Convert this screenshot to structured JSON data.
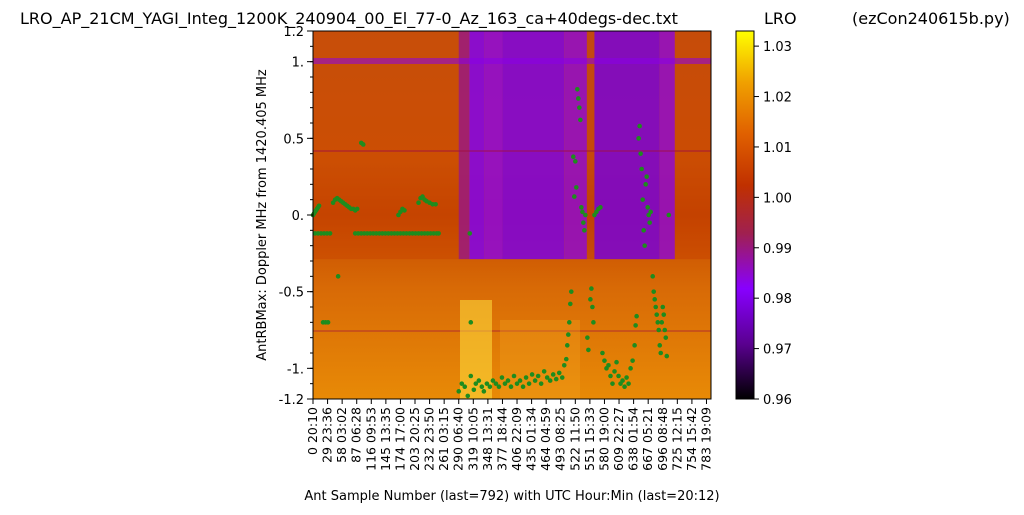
{
  "header": {
    "title": "LRO_AP_21CM_YAGI_Integ_1200K_240904_00_El_77-0_Az_163_ca+40degs-dec.txt",
    "station": "LRO",
    "script": "(ezCon240615b.py)"
  },
  "chart_data": {
    "type": "heatmap",
    "xlabel": "Ant Sample Number (last=792) with UTC Hour:Min (last=20:12)",
    "ylabel": "AntRBMax:  Doppler MHz from 1420.405 MHz",
    "xlim": [
      0,
      792
    ],
    "ylim": [
      -1.2,
      1.2
    ],
    "x_ticks": [
      {
        "value": 0,
        "label": "0  20:10"
      },
      {
        "value": 29,
        "label": "29  23:36"
      },
      {
        "value": 58,
        "label": "58  03:02"
      },
      {
        "value": 87,
        "label": "87  06:28"
      },
      {
        "value": 116,
        "label": "116  09:53"
      },
      {
        "value": 145,
        "label": "145  13:35"
      },
      {
        "value": 174,
        "label": "174  17:00"
      },
      {
        "value": 203,
        "label": "203  20:25"
      },
      {
        "value": 232,
        "label": "232  23:50"
      },
      {
        "value": 261,
        "label": "261  03:15"
      },
      {
        "value": 290,
        "label": "290  06:40"
      },
      {
        "value": 319,
        "label": "319  10:05"
      },
      {
        "value": 348,
        "label": "348  13:31"
      },
      {
        "value": 377,
        "label": "377  18:44"
      },
      {
        "value": 406,
        "label": "406  22:09"
      },
      {
        "value": 435,
        "label": "435  01:34"
      },
      {
        "value": 464,
        "label": "464  04:59"
      },
      {
        "value": 493,
        "label": "493  08:25"
      },
      {
        "value": 522,
        "label": "522  11:50"
      },
      {
        "value": 551,
        "label": "551  15:33"
      },
      {
        "value": 580,
        "label": "580  19:00"
      },
      {
        "value": 609,
        "label": "609  22:27"
      },
      {
        "value": 638,
        "label": "638  01:54"
      },
      {
        "value": 667,
        "label": "667  05:21"
      },
      {
        "value": 696,
        "label": "696  08:48"
      },
      {
        "value": 725,
        "label": "725  12:15"
      },
      {
        "value": 754,
        "label": "754  15:42"
      },
      {
        "value": 783,
        "label": "783  19:09"
      }
    ],
    "y_ticks": [
      {
        "value": 1.2,
        "label": "1.2"
      },
      {
        "value": 1.0,
        "label": "1."
      },
      {
        "value": 0.5,
        "label": "0.5"
      },
      {
        "value": 0.0,
        "label": "0."
      },
      {
        "value": -0.5,
        "label": "-0.5"
      },
      {
        "value": -1.0,
        "label": "-1."
      },
      {
        "value": -1.2,
        "label": "-1.2"
      }
    ],
    "colorbar": {
      "colormap": "gnuplot",
      "range": [
        0.96,
        1.033
      ],
      "ticks": [
        {
          "value": 1.03,
          "label": "1.03"
        },
        {
          "value": 1.02,
          "label": "1.02"
        },
        {
          "value": 1.01,
          "label": "1.01"
        },
        {
          "value": 1.0,
          "label": "1.00"
        },
        {
          "value": 0.99,
          "label": "0.99"
        },
        {
          "value": 0.98,
          "label": "0.98"
        },
        {
          "value": 0.97,
          "label": "0.97"
        },
        {
          "value": 0.96,
          "label": "0.96"
        }
      ]
    },
    "heatmap_bands": [
      {
        "x0": 0,
        "x1": 290,
        "value": 1.004
      },
      {
        "x0": 290,
        "x1": 311,
        "value": 0.99
      },
      {
        "x0": 311,
        "x1": 341,
        "value": 0.98
      },
      {
        "x0": 341,
        "x1": 377,
        "value": 0.984
      },
      {
        "x0": 377,
        "x1": 500,
        "value": 0.979
      },
      {
        "x0": 500,
        "x1": 545,
        "value": 0.985
      },
      {
        "x0": 545,
        "x1": 560,
        "value": 1.0
      },
      {
        "x0": 560,
        "x1": 690,
        "value": 0.978
      },
      {
        "x0": 690,
        "x1": 720,
        "value": 0.985
      },
      {
        "x0": 720,
        "x1": 792,
        "value": 1.003
      }
    ],
    "series": [
      {
        "color": "#1e8c1e",
        "points": [
          [
            0,
            0.0
          ],
          [
            2,
            0.01
          ],
          [
            4,
            0.02
          ],
          [
            6,
            0.03
          ],
          [
            8,
            0.04
          ],
          [
            10,
            0.05
          ],
          [
            12,
            0.06
          ],
          [
            4,
            -0.12
          ],
          [
            10,
            -0.12
          ],
          [
            16,
            -0.12
          ],
          [
            22,
            -0.12
          ],
          [
            28,
            -0.12
          ],
          [
            34,
            -0.12
          ],
          [
            40,
            0.08
          ],
          [
            44,
            0.1
          ],
          [
            48,
            0.11
          ],
          [
            52,
            0.1
          ],
          [
            56,
            0.09
          ],
          [
            60,
            0.08
          ],
          [
            64,
            0.07
          ],
          [
            68,
            0.06
          ],
          [
            72,
            0.05
          ],
          [
            76,
            0.04
          ],
          [
            50,
            -0.4
          ],
          [
            20,
            -0.7
          ],
          [
            25,
            -0.7
          ],
          [
            30,
            -0.7
          ],
          [
            84,
            -0.12
          ],
          [
            90,
            -0.12
          ],
          [
            96,
            -0.12
          ],
          [
            102,
            -0.12
          ],
          [
            108,
            -0.12
          ],
          [
            114,
            -0.12
          ],
          [
            120,
            -0.12
          ],
          [
            126,
            -0.12
          ],
          [
            132,
            -0.12
          ],
          [
            138,
            -0.12
          ],
          [
            144,
            -0.12
          ],
          [
            150,
            -0.12
          ],
          [
            156,
            -0.12
          ],
          [
            162,
            -0.12
          ],
          [
            168,
            -0.12
          ],
          [
            174,
            -0.12
          ],
          [
            180,
            -0.12
          ],
          [
            186,
            -0.12
          ],
          [
            192,
            -0.12
          ],
          [
            198,
            -0.12
          ],
          [
            204,
            -0.12
          ],
          [
            210,
            -0.12
          ],
          [
            216,
            -0.12
          ],
          [
            222,
            -0.12
          ],
          [
            228,
            -0.12
          ],
          [
            234,
            -0.12
          ],
          [
            240,
            -0.12
          ],
          [
            246,
            -0.12
          ],
          [
            250,
            -0.12
          ],
          [
            80,
            0.04
          ],
          [
            84,
            0.03
          ],
          [
            88,
            0.04
          ],
          [
            96,
            0.47
          ],
          [
            100,
            0.46
          ],
          [
            170,
            0.0
          ],
          [
            174,
            0.02
          ],
          [
            178,
            0.04
          ],
          [
            182,
            0.03
          ],
          [
            210,
            0.08
          ],
          [
            214,
            0.11
          ],
          [
            218,
            0.12
          ],
          [
            222,
            0.1
          ],
          [
            226,
            0.09
          ],
          [
            232,
            0.08
          ],
          [
            238,
            0.07
          ],
          [
            244,
            0.07
          ],
          [
            312,
            -0.12
          ],
          [
            314,
            -0.7
          ],
          [
            290,
            -1.15
          ],
          [
            296,
            -1.1
          ],
          [
            302,
            -1.12
          ],
          [
            308,
            -1.18
          ],
          [
            314,
            -1.05
          ],
          [
            320,
            -1.14
          ],
          [
            324,
            -1.1
          ],
          [
            330,
            -1.08
          ],
          [
            336,
            -1.12
          ],
          [
            340,
            -1.15
          ],
          [
            346,
            -1.1
          ],
          [
            352,
            -1.12
          ],
          [
            358,
            -1.08
          ],
          [
            364,
            -1.1
          ],
          [
            370,
            -1.12
          ],
          [
            376,
            -1.06
          ],
          [
            382,
            -1.1
          ],
          [
            388,
            -1.08
          ],
          [
            394,
            -1.12
          ],
          [
            400,
            -1.05
          ],
          [
            406,
            -1.1
          ],
          [
            412,
            -1.08
          ],
          [
            418,
            -1.12
          ],
          [
            424,
            -1.06
          ],
          [
            430,
            -1.1
          ],
          [
            436,
            -1.04
          ],
          [
            442,
            -1.08
          ],
          [
            448,
            -1.05
          ],
          [
            454,
            -1.1
          ],
          [
            460,
            -1.02
          ],
          [
            466,
            -1.06
          ],
          [
            472,
            -1.08
          ],
          [
            478,
            -1.04
          ],
          [
            484,
            -1.07
          ],
          [
            490,
            -1.03
          ],
          [
            496,
            -1.06
          ],
          [
            500,
            -0.98
          ],
          [
            504,
            -0.94
          ],
          [
            506,
            -0.85
          ],
          [
            508,
            -0.78
          ],
          [
            510,
            -0.7
          ],
          [
            512,
            -0.58
          ],
          [
            514,
            -0.5
          ],
          [
            518,
            0.38
          ],
          [
            520,
            0.12
          ],
          [
            522,
            0.35
          ],
          [
            524,
            0.18
          ],
          [
            526,
            0.82
          ],
          [
            528,
            0.76
          ],
          [
            530,
            0.7
          ],
          [
            532,
            0.62
          ],
          [
            534,
            0.05
          ],
          [
            536,
            0.02
          ],
          [
            538,
            -0.05
          ],
          [
            540,
            -0.1
          ],
          [
            542,
            0.0
          ],
          [
            546,
            -0.8
          ],
          [
            548,
            -0.88
          ],
          [
            552,
            -0.55
          ],
          [
            554,
            -0.48
          ],
          [
            556,
            -0.6
          ],
          [
            558,
            -0.7
          ],
          [
            560,
            0.0
          ],
          [
            564,
            0.02
          ],
          [
            568,
            0.04
          ],
          [
            572,
            0.05
          ],
          [
            576,
            -0.9
          ],
          [
            580,
            -0.95
          ],
          [
            584,
            -1.0
          ],
          [
            588,
            -0.98
          ],
          [
            592,
            -1.05
          ],
          [
            596,
            -1.1
          ],
          [
            600,
            -1.02
          ],
          [
            604,
            -0.96
          ],
          [
            608,
            -1.05
          ],
          [
            612,
            -1.1
          ],
          [
            616,
            -1.08
          ],
          [
            620,
            -1.12
          ],
          [
            624,
            -1.06
          ],
          [
            628,
            -1.1
          ],
          [
            632,
            -1.0
          ],
          [
            636,
            -0.95
          ],
          [
            640,
            -0.85
          ],
          [
            642,
            -0.72
          ],
          [
            644,
            -0.66
          ],
          [
            648,
            0.5
          ],
          [
            650,
            0.58
          ],
          [
            652,
            0.4
          ],
          [
            654,
            0.3
          ],
          [
            656,
            0.1
          ],
          [
            658,
            -0.1
          ],
          [
            660,
            -0.2
          ],
          [
            662,
            0.2
          ],
          [
            664,
            0.25
          ],
          [
            666,
            0.05
          ],
          [
            668,
            0.0
          ],
          [
            670,
            -0.05
          ],
          [
            672,
            0.02
          ],
          [
            676,
            -0.4
          ],
          [
            678,
            -0.5
          ],
          [
            680,
            -0.55
          ],
          [
            682,
            -0.6
          ],
          [
            684,
            -0.65
          ],
          [
            686,
            -0.7
          ],
          [
            688,
            -0.75
          ],
          [
            690,
            -0.85
          ],
          [
            692,
            -0.9
          ],
          [
            694,
            -0.7
          ],
          [
            696,
            -0.6
          ],
          [
            698,
            -0.65
          ],
          [
            700,
            -0.75
          ],
          [
            702,
            -0.8
          ],
          [
            704,
            -0.92
          ],
          [
            708,
            0.0
          ]
        ]
      }
    ]
  }
}
